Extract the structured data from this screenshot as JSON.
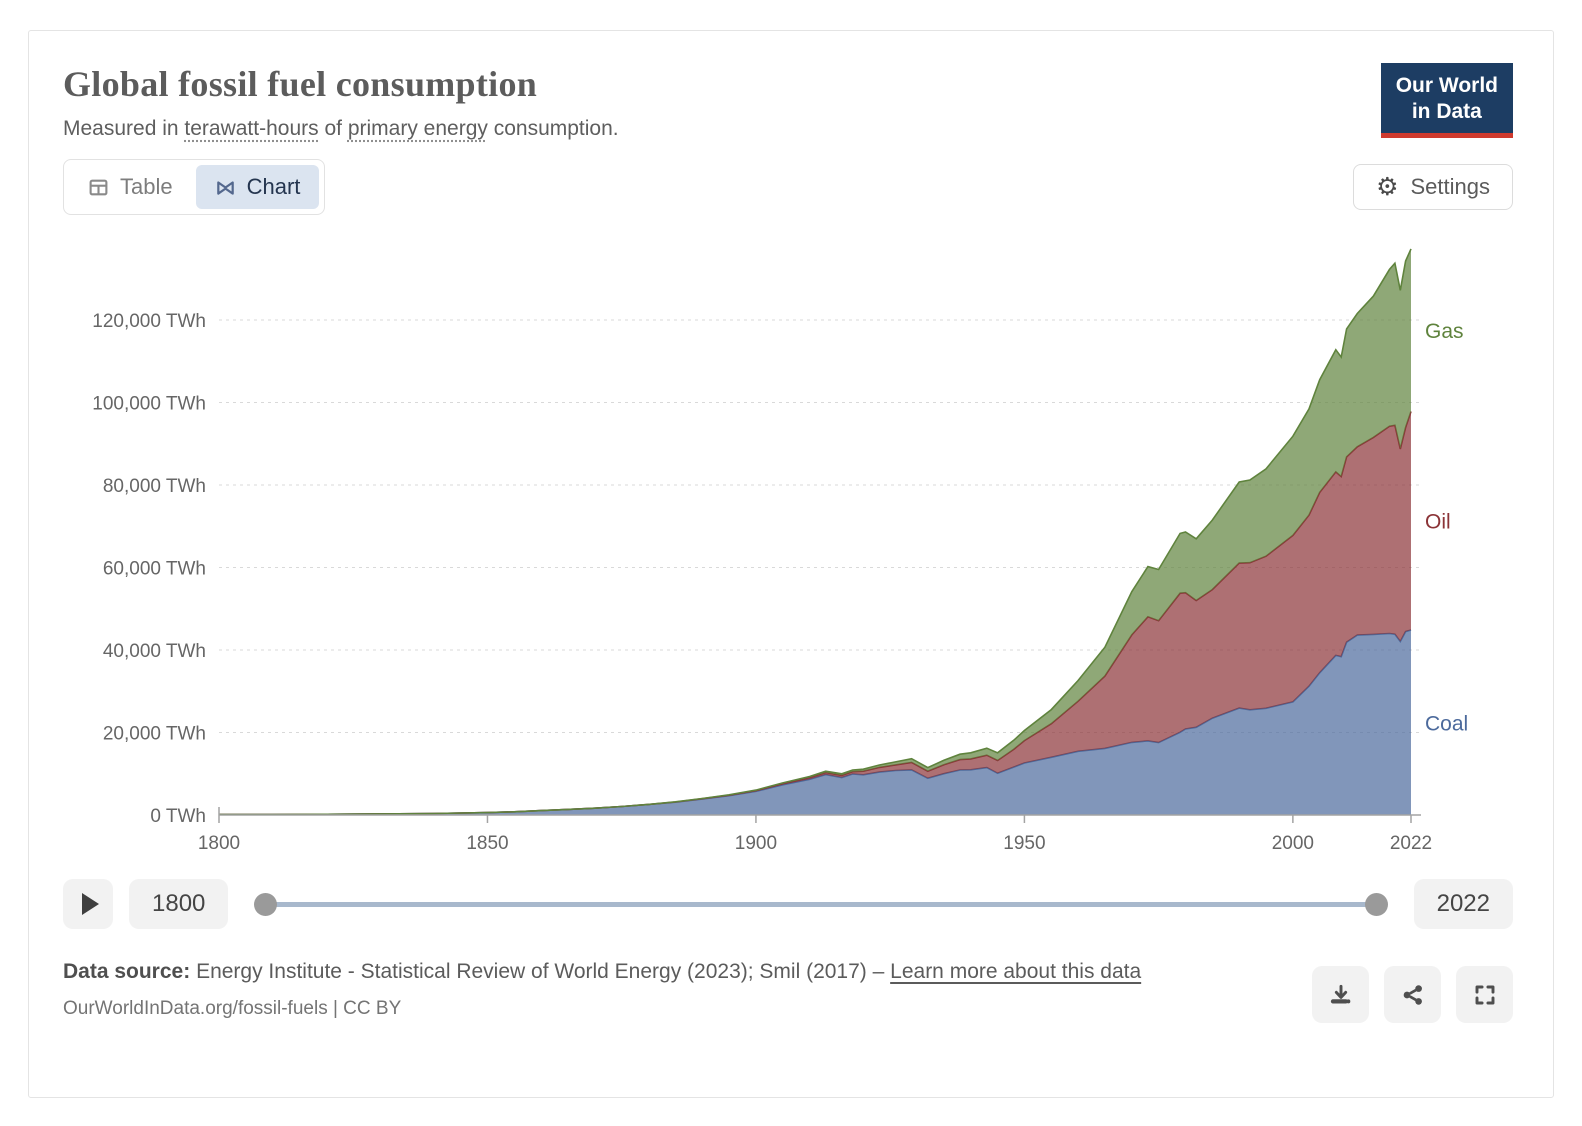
{
  "header": {
    "title": "Global fossil fuel consumption",
    "subtitle": {
      "lead": "Measured in ",
      "term1": "terawatt-hours",
      "mid": " of ",
      "term2": "primary energy",
      "tail": " consumption."
    }
  },
  "logo": {
    "line1": "Our World",
    "line2": "in Data",
    "bg_color": "#1d3d63",
    "accent_color": "#cf3a2e"
  },
  "tabs": {
    "table_label": "Table",
    "chart_label": "Chart",
    "active_tab": "Chart"
  },
  "controls": {
    "settings_label": "Settings"
  },
  "timeline": {
    "start": "1800",
    "end": "2022"
  },
  "footer": {
    "source_label": "Data source:",
    "source_text": "Energy Institute - Statistical Review of World Energy (2023); Smil (2017)",
    "dash": "–",
    "learn_more": "Learn more about this data",
    "url_line": "OurWorldInData.org/fossil-fuels | CC BY"
  },
  "chart_data": {
    "type": "area",
    "stacked": true,
    "title": "Global fossil fuel consumption",
    "unit": "TWh",
    "xlabel": "",
    "ylabel": "TWh",
    "x_range": [
      1800,
      2022
    ],
    "y_range": [
      0,
      120000
    ],
    "grid": true,
    "legend_position": "right",
    "x_ticks": [
      {
        "value": 1800,
        "label": "1800"
      },
      {
        "value": 1850,
        "label": "1850"
      },
      {
        "value": 1900,
        "label": "1900"
      },
      {
        "value": 1950,
        "label": "1950"
      },
      {
        "value": 2000,
        "label": "2000"
      },
      {
        "value": 2022,
        "label": "2022"
      }
    ],
    "y_ticks": [
      {
        "value": 0,
        "label": "0 TWh"
      },
      {
        "value": 20000,
        "label": "20,000 TWh"
      },
      {
        "value": 40000,
        "label": "40,000 TWh"
      },
      {
        "value": 60000,
        "label": "60,000 TWh"
      },
      {
        "value": 80000,
        "label": "80,000 TWh"
      },
      {
        "value": 100000,
        "label": "100,000 TWh"
      },
      {
        "value": 120000,
        "label": "120,000 TWh"
      }
    ],
    "years": [
      1800,
      1810,
      1820,
      1830,
      1840,
      1850,
      1855,
      1860,
      1865,
      1870,
      1875,
      1880,
      1885,
      1890,
      1895,
      1900,
      1905,
      1910,
      1913,
      1916,
      1918,
      1920,
      1923,
      1926,
      1929,
      1932,
      1935,
      1938,
      1940,
      1943,
      1945,
      1948,
      1950,
      1955,
      1960,
      1965,
      1970,
      1973,
      1975,
      1979,
      1980,
      1982,
      1985,
      1990,
      1992,
      1995,
      2000,
      2003,
      2005,
      2008,
      2009,
      2010,
      2012,
      2015,
      2018,
      2019,
      2020,
      2021,
      2022
    ],
    "series": [
      {
        "name": "Coal",
        "color": "#4c6a9c",
        "values": [
          100,
          130,
          160,
          270,
          360,
          570,
          780,
          1060,
          1350,
          1640,
          2050,
          2540,
          3100,
          3860,
          4680,
          5730,
          7320,
          8660,
          9790,
          9100,
          9940,
          9740,
          10400,
          10800,
          10940,
          8890,
          10020,
          10900,
          10960,
          11500,
          10100,
          11600,
          12600,
          13980,
          15440,
          16150,
          17610,
          17960,
          17560,
          20040,
          20860,
          21250,
          23470,
          25910,
          25500,
          25870,
          27430,
          31230,
          34470,
          38700,
          38380,
          41900,
          43600,
          43790,
          44000,
          43840,
          42060,
          44470,
          44850
        ]
      },
      {
        "name": "Oil",
        "color": "#8b3337",
        "values": [
          0,
          0,
          0,
          0,
          0,
          0,
          0,
          2,
          5,
          10,
          20,
          35,
          60,
          90,
          130,
          180,
          280,
          400,
          480,
          500,
          560,
          890,
          1150,
          1350,
          1820,
          1720,
          2180,
          2540,
          2650,
          3000,
          3120,
          4300,
          5440,
          8150,
          12150,
          17530,
          26050,
          30080,
          29550,
          33740,
          33040,
          30740,
          31170,
          35150,
          35660,
          36870,
          40340,
          41480,
          43740,
          44470,
          43650,
          44920,
          45660,
          47750,
          50250,
          50640,
          46660,
          49470,
          52970
        ]
      },
      {
        "name": "Gas",
        "color": "#5f833d",
        "values": [
          0,
          0,
          0,
          0,
          0,
          0,
          0,
          0,
          0,
          0,
          0,
          0,
          30,
          60,
          90,
          120,
          180,
          280,
          340,
          380,
          420,
          470,
          560,
          720,
          900,
          880,
          1060,
          1300,
          1470,
          1700,
          1860,
          2200,
          2440,
          3430,
          5010,
          7000,
          10480,
          12180,
          12410,
          14480,
          14700,
          14970,
          16840,
          19670,
          20060,
          21170,
          24070,
          25750,
          27310,
          29630,
          28970,
          31030,
          32320,
          34250,
          38020,
          39290,
          38450,
          40370,
          39410
        ]
      }
    ]
  }
}
